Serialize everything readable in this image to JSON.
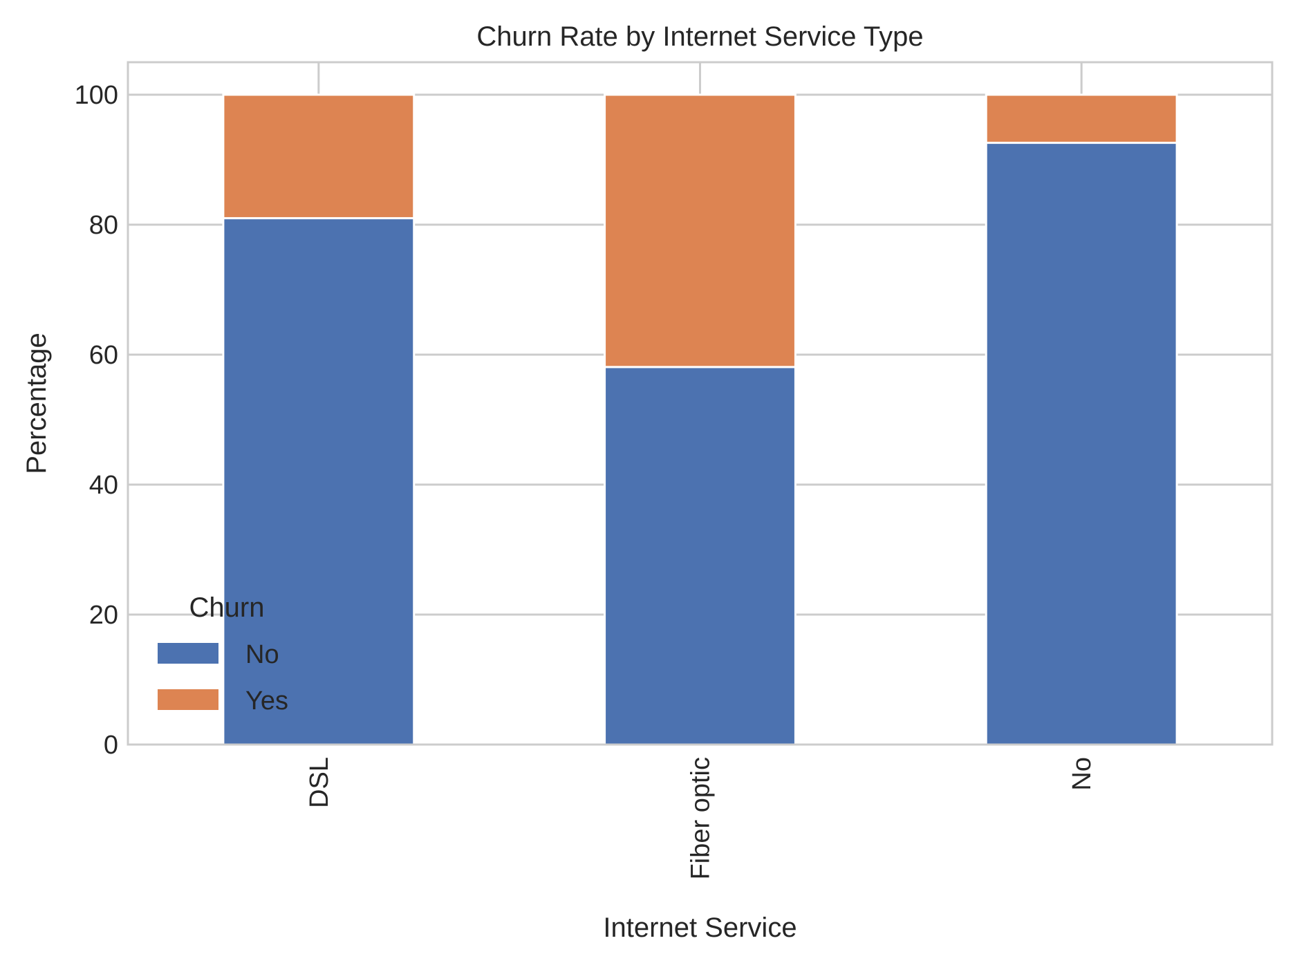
{
  "chart_data": {
    "type": "bar",
    "stacked": true,
    "title": "Churn Rate by Internet Service Type",
    "xlabel": "Internet Service",
    "ylabel": "Percentage",
    "categories": [
      "DSL",
      "Fiber optic",
      "No"
    ],
    "series": [
      {
        "name": "No",
        "values": [
          81.0,
          58.1,
          92.6
        ],
        "color": "#4c72b0"
      },
      {
        "name": "Yes",
        "values": [
          19.0,
          41.9,
          7.4
        ],
        "color": "#dd8452"
      }
    ],
    "ylim": [
      0,
      105
    ],
    "yticks": [
      0,
      20,
      40,
      60,
      80,
      100
    ],
    "grid": true,
    "legend": {
      "title": "Churn",
      "placement": "lower-left"
    }
  }
}
